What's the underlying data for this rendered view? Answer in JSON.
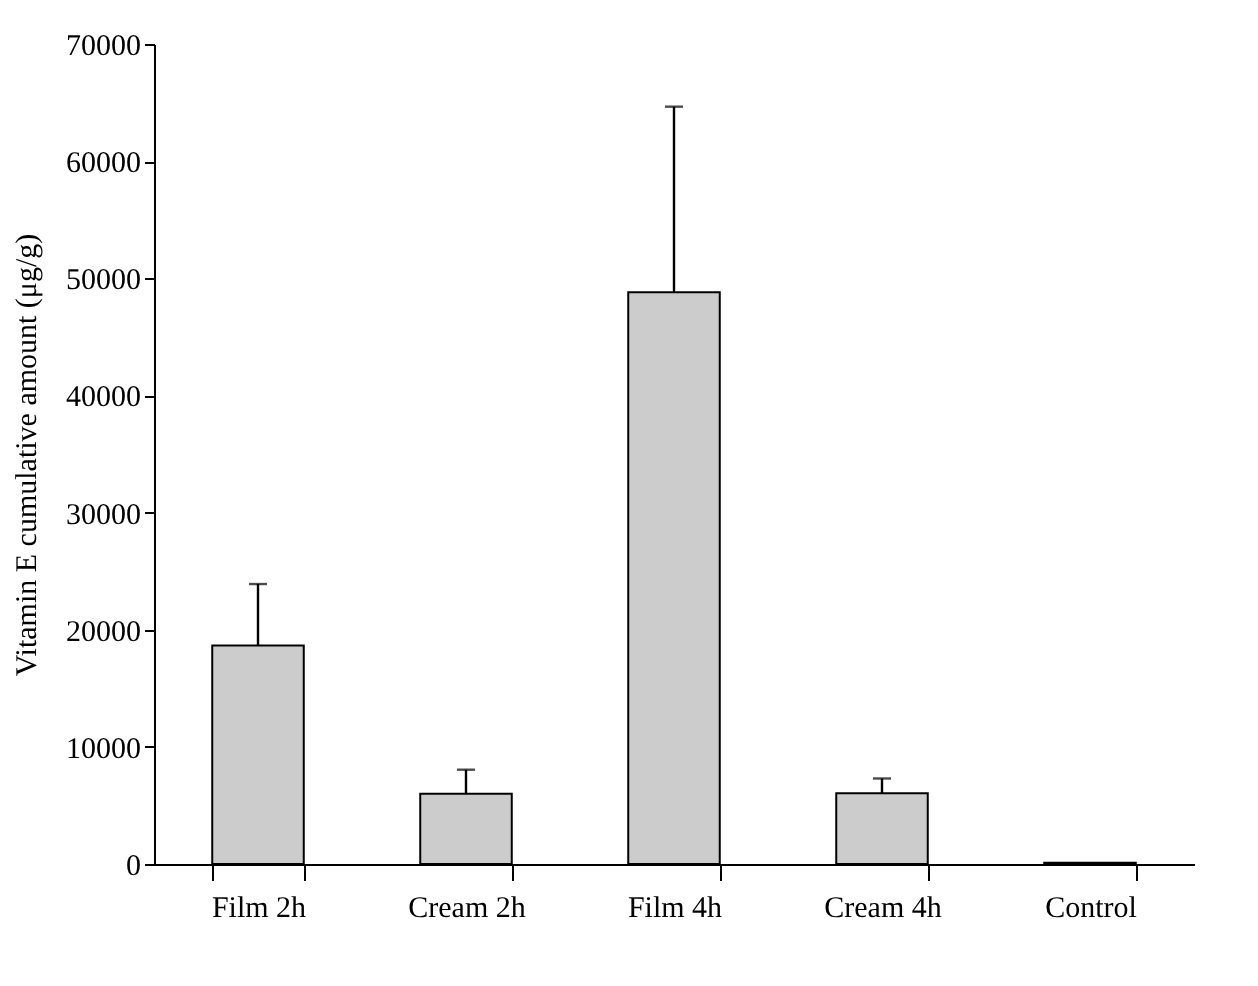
{
  "chart_data": {
    "type": "bar",
    "ylabel": "Vitamin E cumulative amount (μg/g)",
    "categories": [
      "Film 2h",
      "Cream 2h",
      "Film 4h",
      "Cream 4h",
      "Control"
    ],
    "values": [
      18650,
      6000,
      48800,
      6050,
      100
    ],
    "errors": [
      [
        18650,
        23900
      ],
      [
        6000,
        8050
      ],
      [
        48800,
        64650
      ],
      [
        6050,
        7300
      ],
      null
    ],
    "color": "#cccccc",
    "ylim": [
      0,
      70000
    ],
    "yticks": [
      0,
      10000,
      20000,
      30000,
      40000,
      50000,
      60000,
      70000
    ],
    "grid": false
  }
}
